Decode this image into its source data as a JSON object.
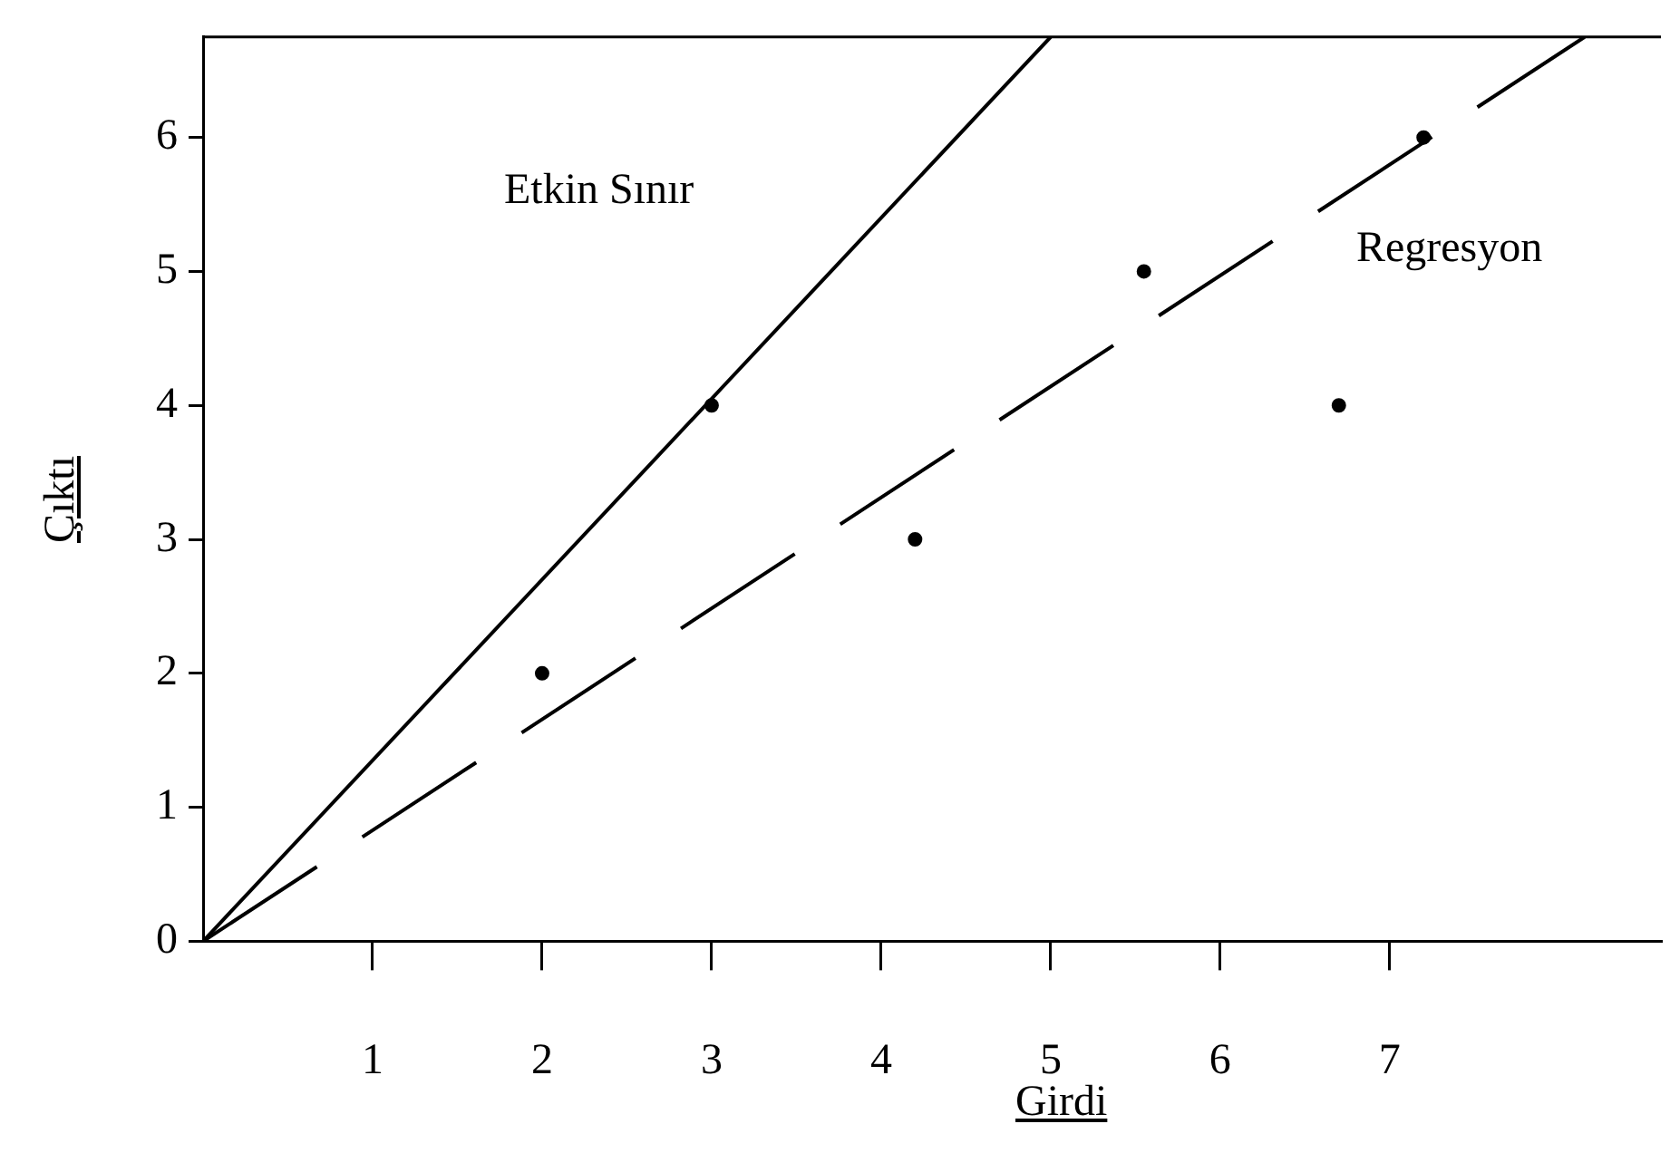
{
  "chart_data": {
    "type": "scatter",
    "xlabel": "Girdi",
    "ylabel": "Çıktı",
    "xlim": [
      0,
      8.6
    ],
    "ylim": [
      0,
      6.75
    ],
    "xticks": [
      1,
      2,
      3,
      4,
      5,
      6,
      7
    ],
    "yticks": [
      0,
      1,
      2,
      3,
      4,
      5,
      6
    ],
    "grid": false,
    "legend": false,
    "series": [
      {
        "color": "#000000",
        "marker": "circle",
        "x": [
          2,
          3,
          4.2,
          5.55,
          6.7,
          7.2
        ],
        "values": [
          2,
          4,
          3,
          5,
          4,
          6
        ]
      },
      {
        "type": "line",
        "color": "#000000",
        "marker": "none",
        "line_style": "solid",
        "x": [
          0,
          5
        ],
        "values": [
          0,
          6.75
        ]
      },
      {
        "type": "line",
        "color": "#000000",
        "marker": "none",
        "line_style": "dashed",
        "x": [
          0,
          8.15
        ],
        "values": [
          0,
          6.75
        ]
      }
    ],
    "annotations": [
      "Etkin Sınır",
      "Regresyon"
    ]
  }
}
